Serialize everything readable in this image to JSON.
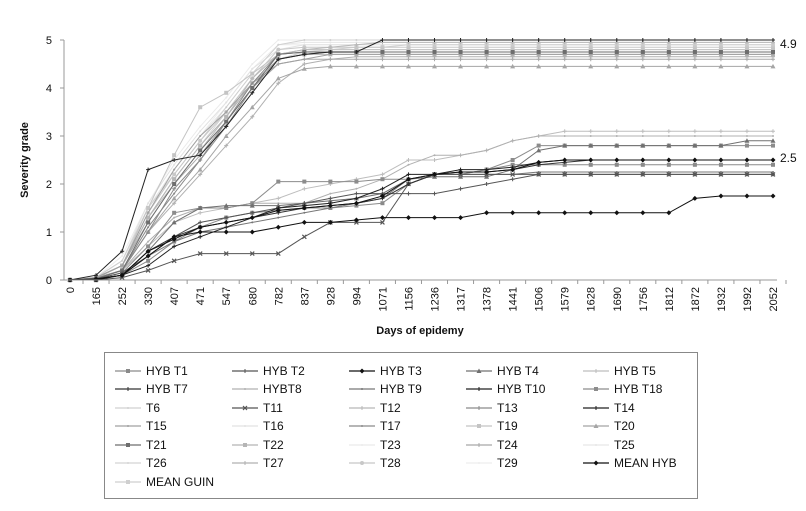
{
  "chart_data": {
    "type": "line",
    "xlabel": "Days of epidemy",
    "ylabel": "Severity grade",
    "ylim": [
      0,
      5
    ],
    "yticks": [
      0,
      1,
      2,
      3,
      4,
      5
    ],
    "grid": false,
    "legend_placement": "bottom",
    "categories": [
      "0",
      "165",
      "252",
      "330",
      "407",
      "471",
      "547",
      "680",
      "782",
      "837",
      "928",
      "994",
      "1071",
      "1156",
      "1236",
      "1317",
      "1378",
      "1441",
      "1506",
      "1579",
      "1628",
      "1690",
      "1756",
      "1812",
      "1872",
      "1932",
      "1992",
      "2052"
    ],
    "annotations": [
      {
        "text": "4.9",
        "y": 4.9
      },
      {
        "text": "2.5",
        "y": 2.5
      }
    ],
    "series": [
      {
        "name": "HYB T1",
        "color": "#8a8a8a",
        "marker": "square",
        "values": [
          0,
          0.02,
          0.1,
          0.4,
          0.8,
          1.1,
          1.3,
          1.4,
          1.45,
          1.5,
          1.5,
          1.55,
          1.6,
          2.0,
          2.2,
          2.2,
          2.3,
          2.4,
          2.4,
          2.4,
          2.4,
          2.4,
          2.4,
          2.4,
          2.4,
          2.4,
          2.4,
          2.4
        ]
      },
      {
        "name": "HYB T2",
        "color": "#555555",
        "marker": "plus",
        "values": [
          0,
          0.02,
          0.15,
          0.5,
          0.9,
          1.2,
          1.3,
          1.4,
          1.5,
          1.6,
          1.7,
          1.8,
          1.8,
          1.8,
          1.8,
          1.9,
          2.0,
          2.1,
          2.2,
          2.2,
          2.2,
          2.2,
          2.2,
          2.2,
          2.2,
          2.2,
          2.2,
          2.2
        ]
      },
      {
        "name": "HYB T3",
        "color": "#111111",
        "marker": "diamond",
        "values": [
          0,
          0,
          0.1,
          0.5,
          0.9,
          1.0,
          1.0,
          1.0,
          1.1,
          1.2,
          1.2,
          1.25,
          1.3,
          1.3,
          1.3,
          1.3,
          1.4,
          1.4,
          1.4,
          1.4,
          1.4,
          1.4,
          1.4,
          1.4,
          1.7,
          1.75,
          1.75,
          1.75
        ]
      },
      {
        "name": "HYB T4",
        "color": "#707070",
        "marker": "triangle",
        "values": [
          0,
          0.02,
          0.1,
          0.6,
          1.2,
          1.5,
          1.55,
          1.55,
          1.55,
          1.6,
          1.65,
          1.7,
          1.8,
          2.1,
          2.15,
          2.15,
          2.15,
          2.3,
          2.7,
          2.8,
          2.8,
          2.8,
          2.8,
          2.8,
          2.8,
          2.8,
          2.9,
          2.9
        ]
      },
      {
        "name": "HYB T5",
        "color": "#bdbdbd",
        "marker": "plus",
        "values": [
          0,
          0.05,
          0.2,
          0.7,
          1.2,
          1.4,
          1.5,
          1.6,
          1.7,
          1.9,
          2.0,
          2.1,
          2.2,
          2.5,
          2.5,
          2.6,
          2.7,
          2.9,
          3.0,
          3.1,
          3.1,
          3.1,
          3.1,
          3.1,
          3.1,
          3.1,
          3.1,
          3.1
        ]
      },
      {
        "name": "HYB T7",
        "color": "#333333",
        "marker": "plus",
        "values": [
          0,
          0.02,
          0.1,
          0.6,
          0.9,
          1.1,
          1.2,
          1.3,
          1.4,
          1.5,
          1.55,
          1.6,
          1.7,
          2.0,
          2.2,
          2.25,
          2.25,
          2.3,
          2.4,
          2.45,
          2.5,
          2.5,
          2.5,
          2.5,
          2.5,
          2.5,
          2.5,
          2.5
        ]
      },
      {
        "name": "HYBT8",
        "color": "#b0b0b0",
        "marker": "none",
        "values": [
          0,
          0.05,
          0.2,
          0.8,
          1.3,
          1.5,
          1.5,
          1.6,
          1.6,
          1.6,
          1.8,
          1.9,
          2.1,
          2.4,
          2.6,
          2.6,
          2.7,
          2.9,
          3.0,
          3.0,
          3.0,
          3.0,
          3.0,
          3.0,
          3.0,
          3.0,
          3.0,
          3.0
        ]
      },
      {
        "name": "HYB T9",
        "color": "#777777",
        "marker": "none",
        "values": [
          0,
          0.02,
          0.1,
          0.5,
          0.8,
          1.0,
          1.1,
          1.2,
          1.3,
          1.4,
          1.5,
          1.6,
          1.7,
          2.1,
          2.2,
          2.2,
          2.2,
          2.2,
          2.25,
          2.25,
          2.25,
          2.25,
          2.25,
          2.25,
          2.25,
          2.25,
          2.25,
          2.25
        ]
      },
      {
        "name": "HYB T10",
        "color": "#222222",
        "marker": "plus",
        "values": [
          0,
          0.02,
          0.1,
          0.3,
          0.7,
          0.9,
          1.1,
          1.3,
          1.5,
          1.55,
          1.6,
          1.7,
          1.9,
          2.2,
          2.2,
          2.3,
          2.3,
          2.35,
          2.45,
          2.5,
          2.5,
          2.5,
          2.5,
          2.5,
          2.5,
          2.5,
          2.5,
          2.5
        ]
      },
      {
        "name": "HYB T18",
        "color": "#8c8c8c",
        "marker": "square",
        "values": [
          0,
          0.02,
          0.15,
          0.7,
          1.4,
          1.5,
          1.5,
          1.6,
          2.05,
          2.05,
          2.05,
          2.05,
          2.1,
          2.1,
          2.2,
          2.2,
          2.3,
          2.5,
          2.8,
          2.8,
          2.8,
          2.8,
          2.8,
          2.8,
          2.8,
          2.8,
          2.8,
          2.8
        ]
      },
      {
        "name": "T6",
        "color": "#d0d0d0",
        "marker": "none",
        "values": [
          0,
          0.05,
          0.4,
          1.5,
          2.2,
          2.9,
          3.6,
          4.3,
          4.9,
          5,
          5,
          5,
          5,
          5,
          5,
          5,
          5,
          5,
          5,
          5,
          5,
          5,
          5,
          5,
          5,
          5,
          5,
          5
        ]
      },
      {
        "name": "T11",
        "color": "#555555",
        "marker": "x",
        "values": [
          0,
          0,
          0.05,
          0.2,
          0.4,
          0.55,
          0.55,
          0.55,
          0.55,
          0.9,
          1.2,
          1.2,
          1.2,
          2.0,
          2.2,
          2.2,
          2.2,
          2.2,
          2.2,
          2.2,
          2.2,
          2.2,
          2.2,
          2.2,
          2.2,
          2.2,
          2.2,
          2.2
        ]
      },
      {
        "name": "T12",
        "color": "#b8b8b8",
        "marker": "plus",
        "values": [
          0,
          0.05,
          0.3,
          1.3,
          2.0,
          2.7,
          3.4,
          4.2,
          4.7,
          4.8,
          4.85,
          4.9,
          4.95,
          4.95,
          4.95,
          4.95,
          4.95,
          4.95,
          4.95,
          4.95,
          4.95,
          4.95,
          4.95,
          4.95,
          4.95,
          4.95,
          4.95,
          4.95
        ]
      },
      {
        "name": "T13",
        "color": "#8a8a8a",
        "marker": "plus",
        "values": [
          0,
          0.03,
          0.2,
          1.0,
          1.9,
          2.5,
          3.2,
          4.0,
          4.6,
          4.7,
          4.75,
          4.75,
          4.75,
          4.75,
          4.75,
          4.75,
          4.75,
          4.75,
          4.75,
          4.75,
          4.75,
          4.75,
          4.75,
          4.75,
          4.75,
          4.75,
          4.75,
          4.75
        ]
      },
      {
        "name": "T14",
        "color": "#222222",
        "marker": "plus",
        "values": [
          0,
          0.1,
          0.6,
          2.3,
          2.5,
          2.6,
          3.2,
          3.9,
          4.6,
          4.7,
          4.75,
          4.75,
          5,
          5,
          5,
          5,
          5,
          5,
          5,
          5,
          5,
          5,
          5,
          5,
          5,
          5,
          5,
          5
        ]
      },
      {
        "name": "T15",
        "color": "#a0a0a0",
        "marker": "none",
        "values": [
          0,
          0.05,
          0.3,
          1.4,
          2.3,
          3.0,
          3.5,
          4.1,
          4.5,
          4.6,
          4.7,
          4.7,
          4.7,
          4.7,
          4.7,
          4.7,
          4.7,
          4.7,
          4.7,
          4.7,
          4.7,
          4.7,
          4.7,
          4.7,
          4.7,
          4.7,
          4.7,
          4.7
        ]
      },
      {
        "name": "T16",
        "color": "#e2e2e2",
        "marker": "none",
        "values": [
          0,
          0.05,
          0.4,
          1.6,
          2.4,
          3.1,
          3.7,
          4.4,
          4.8,
          4.9,
          4.9,
          4.9,
          4.9,
          4.9,
          4.9,
          4.9,
          4.9,
          4.9,
          4.9,
          4.9,
          4.9,
          4.9,
          4.9,
          4.9,
          4.9,
          4.9,
          4.9,
          4.9
        ]
      },
      {
        "name": "T17",
        "color": "#8a8a8a",
        "marker": "none",
        "values": [
          0,
          0.03,
          0.2,
          1.1,
          1.8,
          2.5,
          3.3,
          4.1,
          4.7,
          4.75,
          4.75,
          4.75,
          4.75,
          4.75,
          4.75,
          4.75,
          4.75,
          4.75,
          4.75,
          4.75,
          4.75,
          4.75,
          4.75,
          4.75,
          4.75,
          4.75,
          4.75,
          4.75
        ]
      },
      {
        "name": "T19",
        "color": "#c4c4c4",
        "marker": "square",
        "values": [
          0,
          0.05,
          0.3,
          1.5,
          2.6,
          3.6,
          3.9,
          4.3,
          4.7,
          4.8,
          4.8,
          4.8,
          4.8,
          4.8,
          4.8,
          4.8,
          4.8,
          4.8,
          4.8,
          4.8,
          4.8,
          4.8,
          4.8,
          4.8,
          4.8,
          4.8,
          4.8,
          4.8
        ]
      },
      {
        "name": "T20",
        "color": "#a5a5a5",
        "marker": "triangle",
        "values": [
          0,
          0.03,
          0.2,
          1.0,
          1.7,
          2.3,
          3.0,
          3.6,
          4.2,
          4.4,
          4.45,
          4.45,
          4.45,
          4.45,
          4.45,
          4.45,
          4.45,
          4.45,
          4.45,
          4.45,
          4.45,
          4.45,
          4.45,
          4.45,
          4.45,
          4.45,
          4.45,
          4.45
        ]
      },
      {
        "name": "T21",
        "color": "#6e6e6e",
        "marker": "square",
        "values": [
          0,
          0.03,
          0.2,
          1.2,
          2.0,
          2.7,
          3.3,
          4.0,
          4.7,
          4.75,
          4.75,
          4.75,
          4.75,
          4.75,
          4.75,
          4.75,
          4.75,
          4.75,
          4.75,
          4.75,
          4.75,
          4.75,
          4.75,
          4.75,
          4.75,
          4.75,
          4.75,
          4.75
        ]
      },
      {
        "name": "T22",
        "color": "#b5b5b5",
        "marker": "square",
        "values": [
          0,
          0.05,
          0.3,
          1.3,
          2.1,
          2.8,
          3.4,
          4.1,
          4.6,
          4.7,
          4.7,
          4.7,
          4.7,
          4.7,
          4.7,
          4.7,
          4.7,
          4.7,
          4.7,
          4.7,
          4.7,
          4.7,
          4.7,
          4.7,
          4.7,
          4.7,
          4.7,
          4.7
        ]
      },
      {
        "name": "T23",
        "color": "#ebebeb",
        "marker": "none",
        "values": [
          0,
          0.05,
          0.5,
          1.6,
          2.5,
          3.2,
          3.8,
          4.5,
          5,
          5,
          5,
          5,
          5,
          5,
          5,
          5,
          5,
          5,
          5,
          5,
          5,
          5,
          5,
          5,
          5,
          5,
          5,
          5
        ]
      },
      {
        "name": "T24",
        "color": "#a8a8a8",
        "marker": "plus",
        "values": [
          0,
          0.04,
          0.3,
          1.2,
          2.0,
          2.6,
          3.3,
          4.0,
          4.5,
          4.6,
          4.6,
          4.6,
          4.6,
          4.6,
          4.6,
          4.6,
          4.6,
          4.6,
          4.6,
          4.6,
          4.6,
          4.6,
          4.6,
          4.6,
          4.6,
          4.6,
          4.6,
          4.6
        ]
      },
      {
        "name": "T25",
        "color": "#e6e6e6",
        "marker": "none",
        "values": [
          0,
          0.06,
          0.4,
          1.5,
          2.3,
          3.0,
          3.6,
          4.3,
          4.9,
          4.95,
          4.95,
          4.95,
          4.95,
          4.95,
          4.95,
          4.95,
          4.95,
          4.95,
          4.95,
          4.95,
          4.95,
          4.95,
          4.95,
          4.95,
          4.95,
          4.95,
          4.95,
          4.95
        ]
      },
      {
        "name": "T26",
        "color": "#d4d4d4",
        "marker": "none",
        "values": [
          0,
          0.04,
          0.3,
          1.3,
          2.1,
          2.8,
          3.5,
          4.2,
          4.7,
          4.8,
          4.8,
          4.8,
          4.8,
          4.8,
          4.8,
          4.8,
          4.8,
          4.8,
          4.8,
          4.8,
          4.8,
          4.8,
          4.8,
          4.8,
          4.8,
          4.8,
          4.8,
          4.8
        ]
      },
      {
        "name": "T27",
        "color": "#b0b0b0",
        "marker": "plus",
        "values": [
          0,
          0.03,
          0.2,
          1.0,
          1.6,
          2.2,
          2.8,
          3.4,
          4.1,
          4.5,
          4.6,
          4.65,
          4.65,
          4.65,
          4.65,
          4.65,
          4.65,
          4.65,
          4.65,
          4.65,
          4.65,
          4.65,
          4.65,
          4.65,
          4.65,
          4.65,
          4.65,
          4.65
        ]
      },
      {
        "name": "T28",
        "color": "#c8c8c8",
        "marker": "circle",
        "values": [
          0,
          0.05,
          0.3,
          1.4,
          2.2,
          2.9,
          3.5,
          4.2,
          4.8,
          4.85,
          4.85,
          4.85,
          4.85,
          4.85,
          4.85,
          4.85,
          4.85,
          4.85,
          4.85,
          4.85,
          4.85,
          4.85,
          4.85,
          4.85,
          4.85,
          4.85,
          4.85,
          4.85
        ]
      },
      {
        "name": "T29",
        "color": "#eeeeee",
        "marker": "none",
        "values": [
          0,
          0.05,
          0.4,
          1.5,
          2.3,
          3.0,
          3.7,
          4.4,
          4.9,
          4.9,
          4.9,
          4.9,
          4.9,
          4.9,
          4.9,
          4.9,
          4.9,
          4.9,
          4.9,
          4.9,
          4.9,
          4.9,
          4.9,
          4.9,
          4.9,
          4.9,
          4.9,
          4.9
        ]
      },
      {
        "name": "MEAN HYB",
        "color": "#111111",
        "marker": "diamond",
        "values": [
          0,
          0.02,
          0.1,
          0.6,
          0.85,
          1.1,
          1.2,
          1.3,
          1.45,
          1.5,
          1.55,
          1.6,
          1.75,
          2.1,
          2.2,
          2.25,
          2.25,
          2.3,
          2.45,
          2.5,
          2.5,
          2.5,
          2.5,
          2.5,
          2.5,
          2.5,
          2.5,
          2.5
        ]
      },
      {
        "name": "MEAN GUIN",
        "color": "#cfcfcf",
        "marker": "square",
        "values": [
          0,
          0.05,
          0.3,
          1.3,
          2.1,
          2.8,
          3.4,
          4.1,
          4.6,
          4.75,
          4.8,
          4.85,
          4.85,
          4.9,
          4.9,
          4.9,
          4.9,
          4.9,
          4.9,
          4.9,
          4.9,
          4.9,
          4.9,
          4.9,
          4.9,
          4.9,
          4.9,
          4.9
        ]
      }
    ]
  }
}
